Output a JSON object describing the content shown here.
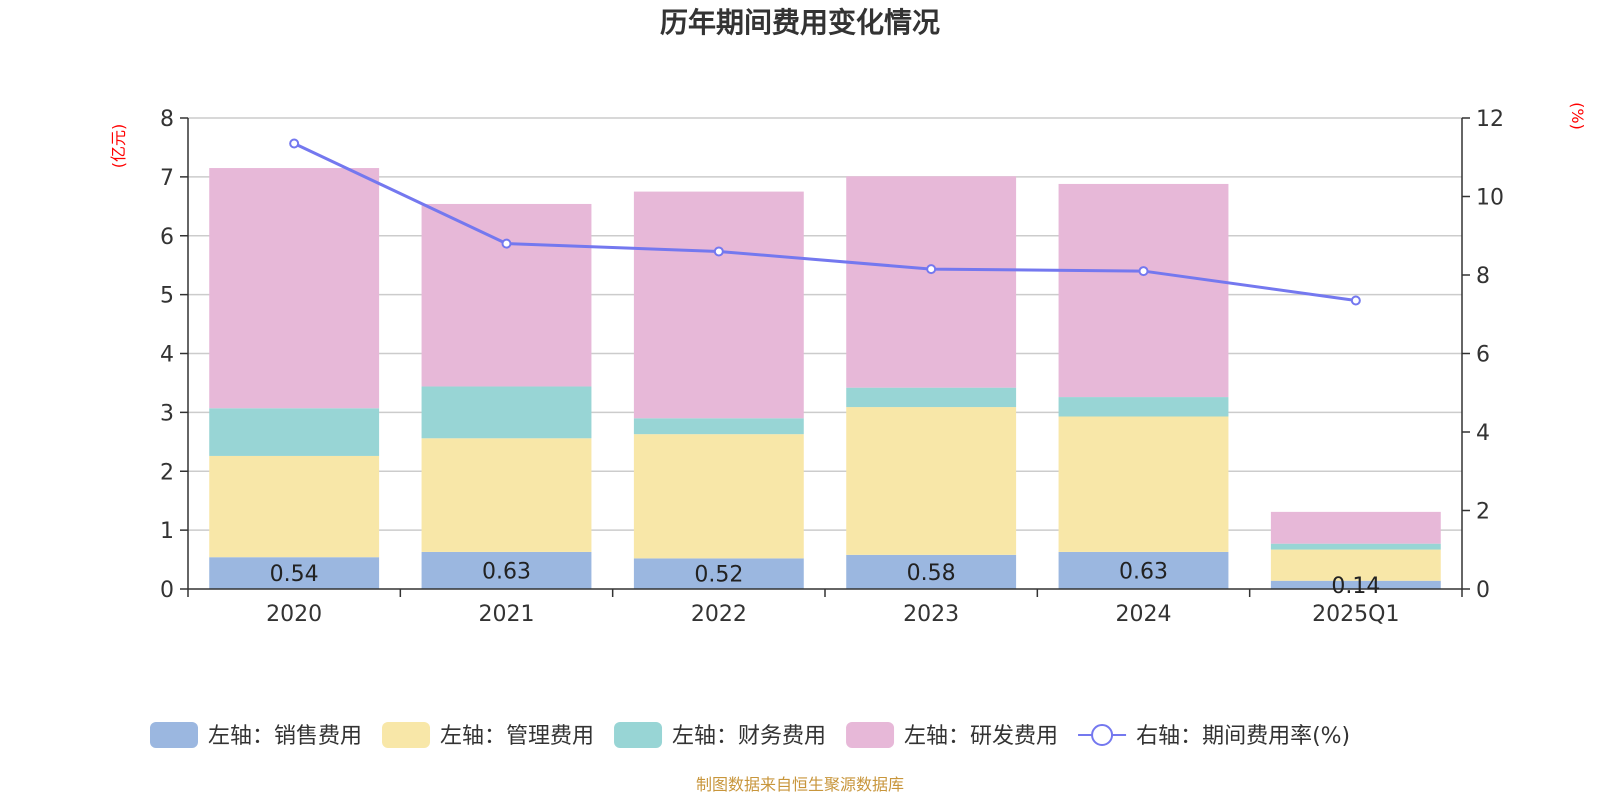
{
  "chart_data": {
    "type": "bar",
    "title": "历年期间费用变化情况",
    "categories": [
      "2020",
      "2021",
      "2022",
      "2023",
      "2024",
      "2025Q1"
    ],
    "left_axis": {
      "unit": "(亿元)",
      "ylim": [
        0,
        8
      ],
      "ticks": [
        "0",
        "1",
        "2",
        "3",
        "4",
        "5",
        "6",
        "7",
        "8"
      ]
    },
    "right_axis": {
      "unit": "(%)",
      "ylim": [
        0,
        12
      ],
      "ticks": [
        "0",
        "2",
        "4",
        "6",
        "8",
        "10",
        "12"
      ]
    },
    "grid": true,
    "stacked": true,
    "series": [
      {
        "name": "左轴：销售费用",
        "axis": "left",
        "color": "#9bb7e0",
        "values": [
          0.54,
          0.63,
          0.52,
          0.58,
          0.63,
          0.14
        ],
        "labels": [
          "0.54",
          "0.63",
          "0.52",
          "0.58",
          "0.63",
          "0.14"
        ]
      },
      {
        "name": "左轴：管理费用",
        "axis": "left",
        "color": "#f8e7a8",
        "values": [
          1.72,
          1.93,
          2.11,
          2.51,
          2.3,
          0.53
        ]
      },
      {
        "name": "左轴：财务费用",
        "axis": "left",
        "color": "#98d5d5",
        "values": [
          0.81,
          0.88,
          0.27,
          0.33,
          0.33,
          0.1
        ]
      },
      {
        "name": "左轴：研发费用",
        "axis": "left",
        "color": "#e7b8d8",
        "values": [
          4.08,
          3.1,
          3.85,
          3.59,
          3.62,
          0.54
        ]
      },
      {
        "name": "右轴：期间费用率(%)",
        "axis": "right",
        "type": "line",
        "color": "#7478ef",
        "values": [
          11.35,
          8.8,
          8.6,
          8.15,
          8.1,
          7.35
        ]
      }
    ],
    "legend_position": "bottom"
  },
  "footer": {
    "source": "制图数据来自恒生聚源数据库"
  }
}
